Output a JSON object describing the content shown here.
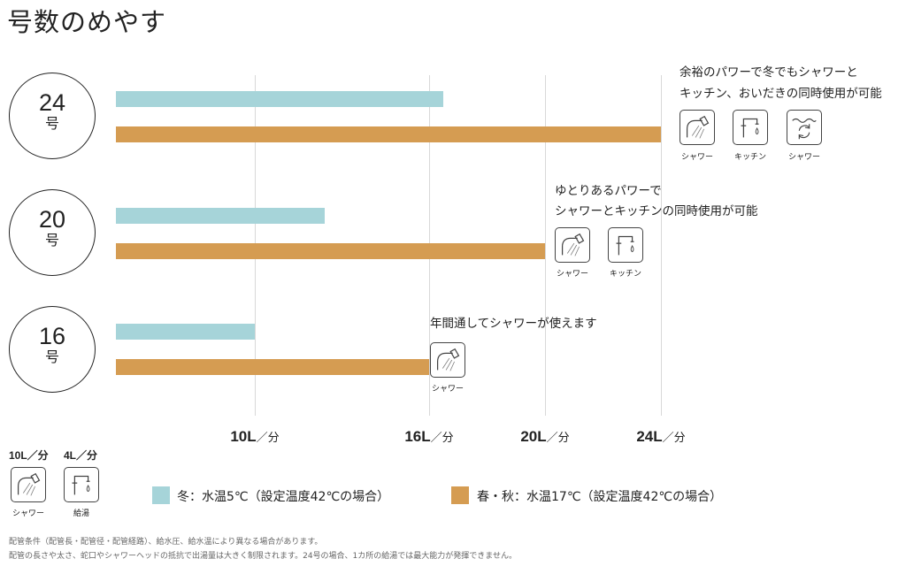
{
  "title": "号数のめやす",
  "colors": {
    "winter": "#a6d4d9",
    "spring_autumn": "#d59c52",
    "grid": "#d8d8d8"
  },
  "chart_data": {
    "type": "bar",
    "orientation": "horizontal",
    "categories": [
      "24号",
      "20号",
      "16号"
    ],
    "series": [
      {
        "name": "冬：水温5℃（設定温度42℃の場合）",
        "values": [
          16.5,
          12.4,
          10
        ]
      },
      {
        "name": "春・秋：水温17℃（設定温度42℃の場合）",
        "values": [
          24,
          20,
          16
        ]
      }
    ],
    "xticks": [
      10,
      16,
      20,
      24
    ],
    "xtick_labels": [
      {
        "value": "10L",
        "unit": "／分"
      },
      {
        "value": "16L",
        "unit": "／分"
      },
      {
        "value": "20L",
        "unit": "／分"
      },
      {
        "value": "24L",
        "unit": "／分"
      }
    ],
    "xlim": [
      5.2,
      24
    ]
  },
  "circles": [
    {
      "num": "24",
      "unit": "号"
    },
    {
      "num": "20",
      "unit": "号"
    },
    {
      "num": "16",
      "unit": "号"
    }
  ],
  "notes": {
    "n24_line1": "余裕のパワーで冬でもシャワーと",
    "n24_line2": "キッチン、おいだきの同時使用が可能",
    "n20_line1": "ゆとりあるパワーで",
    "n20_line2": "シャワーとキッチンの同時使用が可能",
    "n16_line1": "年間通してシャワーが使えます"
  },
  "icon_labels": {
    "shower": "シャワー",
    "kitchen": "キッチン",
    "reheat": "シャワー",
    "hot_water": "給湯"
  },
  "key": {
    "shower_rate": "10L／分",
    "faucet_rate": "4L／分"
  },
  "legend": {
    "winter": "冬：水温5℃（設定温度42℃の場合）",
    "spring_autumn": "春・秋：水温17℃（設定温度42℃の場合）"
  },
  "footnotes": {
    "line1": "配管条件（配管長・配管径・配管経路）、給水圧、給水温により異なる場合があります。",
    "line2": "配管の長さや太さ、蛇口やシャワーヘッドの抵抗で出湯量は大きく制限されます。24号の場合、1カ所の給湯では最大能力が発揮できません。"
  }
}
